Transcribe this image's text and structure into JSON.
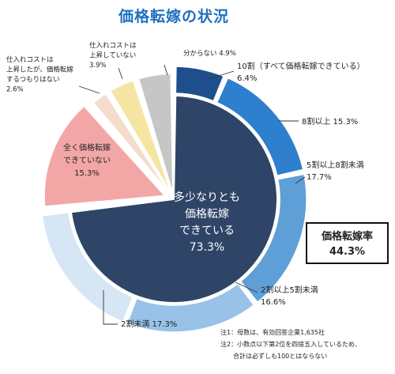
{
  "chart_data": {
    "type": "pie",
    "title": "価格転嫁の状況",
    "slices": [
      {
        "key": "s10",
        "label": "10割（すべて価格転嫁できている）",
        "display": "10割（すべて価格転嫁できている）\n6.4%",
        "value": 6.4,
        "color": "#1e4f8c",
        "ring": "outer"
      },
      {
        "key": "s8",
        "label": "8割以上",
        "display": "8割以上 15.3%",
        "value": 15.3,
        "color": "#2f7fcf",
        "ring": "outer"
      },
      {
        "key": "s5",
        "label": "5割以上8割未満",
        "display": "5割以上8割未満\n17.7%",
        "value": 17.7,
        "color": "#5f9fd8",
        "ring": "outer"
      },
      {
        "key": "s2",
        "label": "2割以上5割未満",
        "display": "2割以上5割未満\n16.6%",
        "value": 16.6,
        "color": "#98c2e8",
        "ring": "outer"
      },
      {
        "key": "s0",
        "label": "2割未満",
        "display": "2割未満 17.3%",
        "value": 17.3,
        "color": "#d7e6f4",
        "ring": "outer"
      },
      {
        "key": "none",
        "label": "全く価格転嫁できていない",
        "display": "全く価格転嫁\nできていない\n15.3%",
        "value": 15.3,
        "color": "#f2a7a6",
        "ring": "full"
      },
      {
        "key": "noplan",
        "label": "仕入れコストは上昇したが、価格転嫁するつもりはない",
        "display": "仕入れコストは\n上昇したが、価格転嫁\nするつもりはない\n2.6%",
        "value": 2.6,
        "color": "#f5dccd",
        "ring": "full"
      },
      {
        "key": "norise",
        "label": "仕入れコストは上昇していない",
        "display": "仕入れコストは\n上昇していない\n3.9%",
        "value": 3.9,
        "color": "#f6e4a2",
        "ring": "full"
      },
      {
        "key": "unknown",
        "label": "分からない",
        "display": "分からない 4.9%",
        "value": 4.9,
        "color": "#c6c6c6",
        "ring": "full"
      }
    ],
    "inner": {
      "label": "多少なりとも\n価格転嫁\nできている\n73.3%",
      "value": 73.3,
      "color": "#2e4567"
    },
    "rate_box": {
      "label": "価格転嫁率",
      "value": "44.3%"
    },
    "notes": [
      "注1：母数は、有効回答企業1,635社",
      "注2：小数点以下第2位を四捨五入しているため、",
      "　　合計は必ずしも100とはならない"
    ]
  }
}
